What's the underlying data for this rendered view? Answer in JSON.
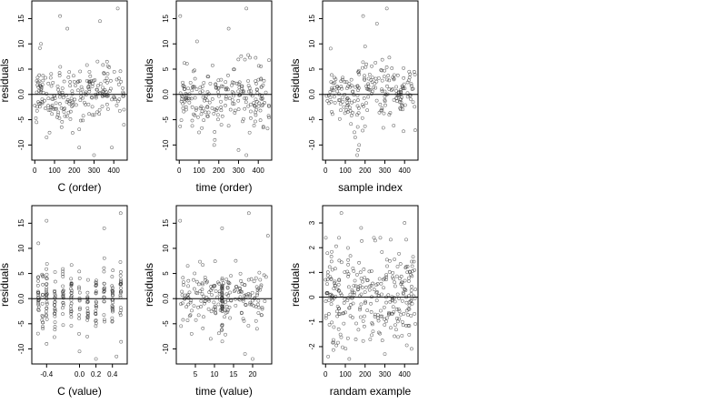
{
  "chart_data": [
    {
      "type": "scatter",
      "xlabel": "C (order)",
      "ylabel": "residuals",
      "xlim": [
        -15,
        468
      ],
      "ylim": [
        -13,
        18.5
      ],
      "xticks": [
        0,
        100,
        200,
        300,
        400
      ],
      "xtick_labels": [
        "0",
        "100",
        "200",
        "300",
        "400"
      ],
      "yticks": [
        -10,
        -5,
        0,
        5,
        10,
        15
      ],
      "ytick_labels": [
        "-10",
        "-5",
        "0.0",
        "5",
        "10",
        "15"
      ],
      "hline": 0,
      "pattern": "uniform",
      "n": 220,
      "seed": 11,
      "outliers": [
        [
          128,
          15.5
        ],
        [
          165,
          13.0
        ],
        [
          330,
          14.5
        ],
        [
          420,
          17.0
        ],
        [
          225,
          -10.5
        ],
        [
          300,
          -12.0
        ],
        [
          390,
          -10.5
        ],
        [
          60,
          -8.5
        ]
      ]
    },
    {
      "type": "scatter",
      "xlabel": "time (order)",
      "ylabel": "residuals",
      "xlim": [
        -15,
        468
      ],
      "ylim": [
        -13,
        18.5
      ],
      "xticks": [
        0,
        100,
        200,
        300,
        400
      ],
      "xtick_labels": [
        "0",
        "100",
        "200",
        "300",
        "400"
      ],
      "yticks": [
        -10,
        -5,
        0,
        5,
        10,
        15
      ],
      "ytick_labels": [
        "-10",
        "-5",
        "0.0",
        "5",
        "10",
        "15"
      ],
      "hline": 0,
      "pattern": "uniform",
      "n": 220,
      "seed": 23,
      "outliers": [
        [
          5,
          15.5
        ],
        [
          90,
          10.5
        ],
        [
          340,
          17.0
        ],
        [
          250,
          13.0
        ],
        [
          300,
          -11.0
        ],
        [
          340,
          -12.0
        ],
        [
          180,
          -9.0
        ],
        [
          100,
          -7.5
        ]
      ]
    },
    {
      "type": "scatter",
      "xlabel": "sample index",
      "ylabel": "residuals",
      "xlim": [
        -15,
        468
      ],
      "ylim": [
        -13,
        18.5
      ],
      "xticks": [
        0,
        100,
        200,
        300,
        400
      ],
      "xtick_labels": [
        "0",
        "100",
        "200",
        "300",
        "400"
      ],
      "yticks": [
        -10,
        -5,
        0,
        5,
        10,
        15
      ],
      "ytick_labels": [
        "-10",
        "-5",
        "0.0",
        "5",
        "10",
        "15"
      ],
      "hline": 0,
      "pattern": "uniform",
      "n": 220,
      "seed": 37,
      "outliers": [
        [
          190,
          15.5
        ],
        [
          200,
          9.5
        ],
        [
          310,
          17.0
        ],
        [
          260,
          14.0
        ],
        [
          160,
          -12.0
        ],
        [
          165,
          -11.0
        ],
        [
          170,
          -10.0
        ],
        [
          150,
          -8.5
        ]
      ]
    },
    {
      "type": "scatter",
      "xlabel": "C (value)",
      "ylabel": "residuals",
      "xlim": [
        -0.58,
        0.58
      ],
      "ylim": [
        -13,
        18.5
      ],
      "xticks": [
        -0.4,
        0.0,
        0.2,
        0.4
      ],
      "xtick_labels": [
        "-0.4",
        "0.0",
        "0.2",
        "0.4"
      ],
      "yticks": [
        -10,
        -5,
        0,
        5,
        10,
        15
      ],
      "ytick_labels": [
        "-10",
        "-5",
        "0.0",
        "5",
        "10",
        "15"
      ],
      "hline": 0,
      "pattern": "columns",
      "columns": [
        -0.5,
        -0.45,
        -0.4,
        -0.3,
        -0.2,
        -0.1,
        0.0,
        0.1,
        0.2,
        0.3,
        0.4,
        0.5
      ],
      "n": 240,
      "seed": 41,
      "outliers": [
        [
          -0.4,
          15.5
        ],
        [
          0.3,
          14.0
        ],
        [
          0.5,
          17.0
        ],
        [
          -0.5,
          11.0
        ],
        [
          0.0,
          -10.5
        ],
        [
          0.45,
          -11.5
        ],
        [
          0.2,
          -12.0
        ],
        [
          -0.4,
          -9.0
        ]
      ]
    },
    {
      "type": "scatter",
      "xlabel": "time (value)",
      "ylabel": "residuals",
      "xlim": [
        0,
        25
      ],
      "ylim": [
        -13,
        18.5
      ],
      "xticks": [
        5,
        10,
        15,
        20
      ],
      "xtick_labels": [
        "5",
        "10",
        "15",
        "20"
      ],
      "yticks": [
        -10,
        -5,
        0,
        5,
        10,
        15
      ],
      "ytick_labels": [
        "-10",
        "-5",
        "0.0",
        "5",
        "10",
        "15"
      ],
      "hline": 0,
      "pattern": "time",
      "n": 230,
      "seed": 53,
      "dense_column": 12,
      "outliers": [
        [
          1,
          15.5
        ],
        [
          12,
          14.0
        ],
        [
          19,
          17.0
        ],
        [
          24,
          12.5
        ],
        [
          18,
          -11.0
        ],
        [
          20,
          -12.0
        ],
        [
          9,
          -8.0
        ],
        [
          4,
          -7.0
        ]
      ]
    },
    {
      "type": "scatter",
      "xlabel": "randam example",
      "ylabel": "residuals",
      "xlim": [
        -15,
        468
      ],
      "ylim": [
        -2.7,
        3.7
      ],
      "xticks": [
        0,
        100,
        200,
        300,
        400
      ],
      "xtick_labels": [
        "0",
        "100",
        "200",
        "300",
        "400"
      ],
      "yticks": [
        -2,
        -1,
        0,
        1,
        2,
        3
      ],
      "ytick_labels": [
        "-2",
        "-1",
        "0",
        "1",
        "2",
        "3"
      ],
      "hline": 0,
      "pattern": "normal",
      "n": 300,
      "seed": 67,
      "outliers": [
        [
          80,
          3.4
        ],
        [
          180,
          2.8
        ],
        [
          400,
          3.0
        ],
        [
          120,
          -2.5
        ],
        [
          300,
          -2.3
        ]
      ]
    }
  ]
}
